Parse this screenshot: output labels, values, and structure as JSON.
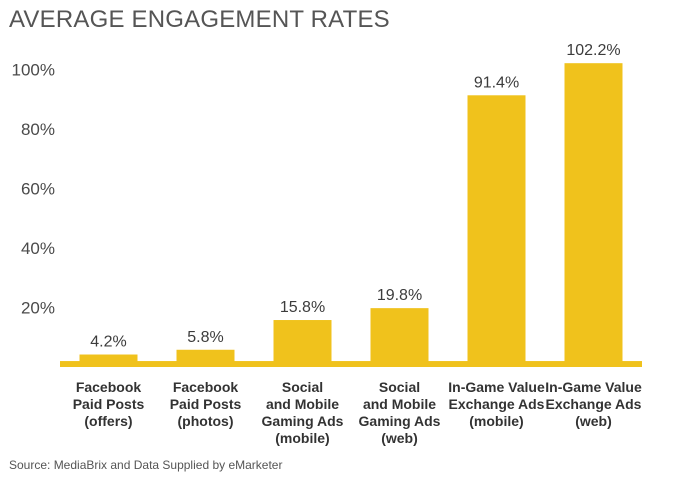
{
  "title": "AVERAGE ENGAGEMENT RATES",
  "source": "Source: MediaBrix and Data Supplied by eMarketer",
  "colors": {
    "bar": "#f0c21c",
    "text": "#4a4a4a"
  },
  "chart_data": {
    "type": "bar",
    "title": "AVERAGE ENGAGEMENT RATES",
    "xlabel": "",
    "ylabel": "",
    "ylim": [
      0,
      110
    ],
    "grid": false,
    "legend": "none",
    "yticks": [
      20,
      40,
      60,
      80,
      100
    ],
    "ytick_labels": [
      "20%",
      "40%",
      "60%",
      "80%",
      "100%"
    ],
    "categories": [
      [
        "Facebook",
        "Paid Posts",
        "(offers)"
      ],
      [
        "Facebook",
        "Paid Posts",
        "(photos)"
      ],
      [
        "Social",
        "and Mobile",
        "Gaming Ads",
        "(mobile)"
      ],
      [
        "Social",
        "and Mobile",
        "Gaming Ads",
        "(web)"
      ],
      [
        "In-Game Value",
        "Exchange Ads",
        "(mobile)"
      ],
      [
        "In-Game Value",
        "Exchange Ads",
        "(web)"
      ]
    ],
    "values": [
      4.2,
      5.8,
      15.8,
      19.8,
      91.4,
      102.2
    ],
    "data_labels": [
      "4.2%",
      "5.8%",
      "15.8%",
      "19.8%",
      "91.4%",
      "102.2%"
    ],
    "baseline_value": 2
  }
}
